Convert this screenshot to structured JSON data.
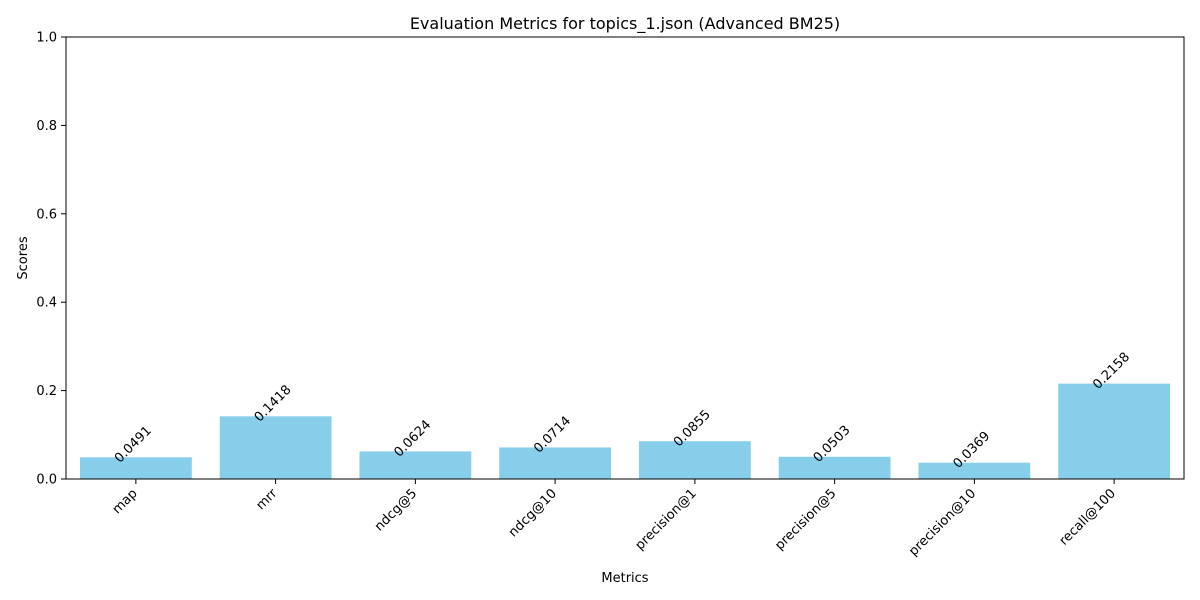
{
  "chart_data": {
    "type": "bar",
    "title": "Evaluation Metrics for topics_1.json (Advanced BM25)",
    "xlabel": "Metrics",
    "ylabel": "Scores",
    "categories": [
      "map",
      "mrr",
      "ndcg@5",
      "ndcg@10",
      "precision@1",
      "precision@5",
      "precision@10",
      "recall@100"
    ],
    "values": [
      0.0491,
      0.1418,
      0.0624,
      0.0714,
      0.0855,
      0.0503,
      0.0369,
      0.2158
    ],
    "value_labels": [
      "0.0491",
      "0.1418",
      "0.0624",
      "0.0714",
      "0.0855",
      "0.0503",
      "0.0369",
      "0.2158"
    ],
    "ylim": [
      0,
      1
    ],
    "yticks": [
      0.0,
      0.2,
      0.4,
      0.6,
      0.8,
      1.0
    ],
    "ytick_labels": [
      "0.0",
      "0.2",
      "0.4",
      "0.6",
      "0.8",
      "1.0"
    ],
    "grid": false,
    "bar_color": "#87CEEB",
    "tick_label_rotation": "45 degrees",
    "value_label_rotation": "45 degrees"
  }
}
